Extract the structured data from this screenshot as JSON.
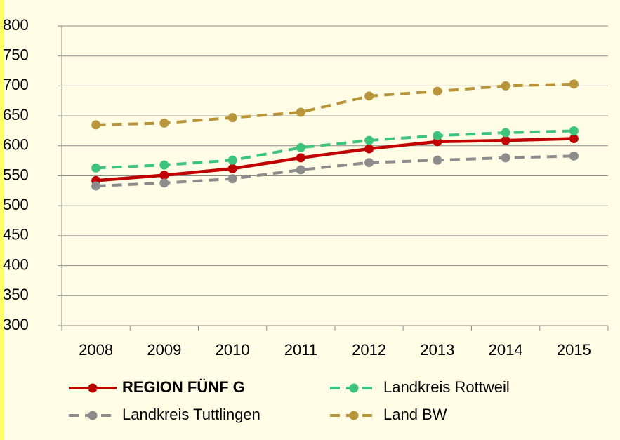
{
  "chart_data": {
    "type": "line",
    "categories": [
      "2008",
      "2009",
      "2010",
      "2011",
      "2012",
      "2013",
      "2014",
      "2015"
    ],
    "series": [
      {
        "name": "REGION FÜNF G",
        "color": "#c00000",
        "line_style": "solid",
        "values": [
          542,
          551,
          562,
          580,
          595,
          607,
          609,
          612
        ]
      },
      {
        "name": "Landkreis Rottweil",
        "color": "#3cc47c",
        "line_style": "dashed",
        "values": [
          563,
          568,
          576,
          597,
          609,
          617,
          622,
          625
        ]
      },
      {
        "name": "Landkreis Tuttlingen",
        "color": "#8c8c8c",
        "line_style": "dashed",
        "values": [
          533,
          538,
          545,
          560,
          572,
          576,
          580,
          583
        ]
      },
      {
        "name": "Land BW",
        "color": "#b8953a",
        "line_style": "dashed",
        "values": [
          635,
          638,
          647,
          656,
          683,
          691,
          700,
          703
        ]
      }
    ],
    "ylim": [
      300,
      800
    ],
    "yticks": [
      300,
      350,
      400,
      450,
      500,
      550,
      600,
      650,
      700,
      750,
      800
    ],
    "grid": true
  }
}
